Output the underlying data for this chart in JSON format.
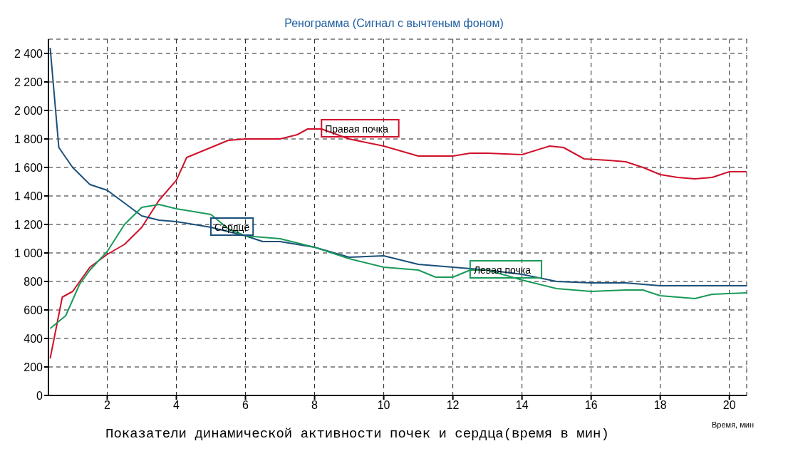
{
  "chart_data": {
    "type": "line",
    "title": "Ренограмма (Сигнал с вычтеным фоном)",
    "xlabel": "Время, мин",
    "annotations": [
      "Показатели динамической активности почек и сердца(время в мин)"
    ],
    "xlim": [
      0.3,
      20.5
    ],
    "xticks": [
      2,
      4,
      6,
      8,
      10,
      12,
      14,
      16,
      18,
      20
    ],
    "ylim": [
      0,
      2500
    ],
    "yticks": [
      0,
      200,
      400,
      600,
      800,
      {
        "value": 1000,
        "label": "1 000"
      },
      {
        "value": 1200,
        "label": "1 200"
      },
      {
        "value": 1400,
        "label": "1 400"
      },
      {
        "value": 1600,
        "label": "1 600"
      },
      {
        "value": 1800,
        "label": "1 800"
      },
      {
        "value": 2000,
        "label": "2 000"
      },
      {
        "value": 2200,
        "label": "2 200"
      },
      {
        "value": 2400,
        "label": "2 400"
      }
    ],
    "grid": true,
    "marker": "none",
    "line_style": "solid",
    "series": [
      {
        "name": "Правая почка",
        "color": "#d0102a",
        "x": [
          0.35,
          0.7,
          1,
          1.5,
          2,
          2.5,
          3,
          3.5,
          4,
          4.3,
          5,
          5.5,
          6,
          7,
          7.5,
          7.8,
          8.2,
          9,
          10,
          11,
          12,
          12.5,
          13,
          14,
          14.8,
          15.2,
          15.8,
          16.5,
          17,
          17.5,
          18,
          18.5,
          19,
          19.5,
          20,
          20.5
        ],
        "values": [
          260,
          690,
          730,
          900,
          990,
          1060,
          1180,
          1370,
          1510,
          1670,
          1740,
          1790,
          1800,
          1800,
          1830,
          1870,
          1870,
          1800,
          1750,
          1680,
          1680,
          1700,
          1700,
          1690,
          1750,
          1740,
          1660,
          1650,
          1640,
          1600,
          1550,
          1530,
          1520,
          1530,
          1570,
          1570
        ]
      },
      {
        "name": "Сердце",
        "color": "#1a4f7a",
        "x": [
          0.35,
          0.6,
          1,
          1.5,
          2,
          2.5,
          3,
          3.5,
          4,
          5,
          6,
          6.5,
          7,
          7.5,
          8,
          9,
          10,
          11,
          12,
          13,
          14,
          15,
          16,
          17,
          18,
          19,
          20.5
        ],
        "values": [
          2440,
          1740,
          1600,
          1480,
          1440,
          1350,
          1260,
          1230,
          1220,
          1180,
          1120,
          1080,
          1080,
          1060,
          1040,
          970,
          980,
          920,
          900,
          880,
          850,
          800,
          790,
          790,
          770,
          770,
          770
        ]
      },
      {
        "name": "Левая почка",
        "color": "#1a9a5a",
        "x": [
          0.35,
          0.8,
          1.2,
          1.5,
          2,
          2.5,
          3,
          3.5,
          4,
          5,
          5.5,
          6,
          7,
          8,
          9,
          10,
          11,
          11.5,
          12,
          12.5,
          13,
          14,
          15,
          16,
          17,
          17.5,
          18,
          19,
          19.5,
          20.5
        ],
        "values": [
          470,
          560,
          780,
          880,
          1010,
          1200,
          1320,
          1340,
          1310,
          1270,
          1170,
          1120,
          1100,
          1040,
          960,
          900,
          880,
          830,
          830,
          880,
          880,
          810,
          750,
          730,
          740,
          740,
          700,
          680,
          710,
          720
        ]
      }
    ]
  }
}
